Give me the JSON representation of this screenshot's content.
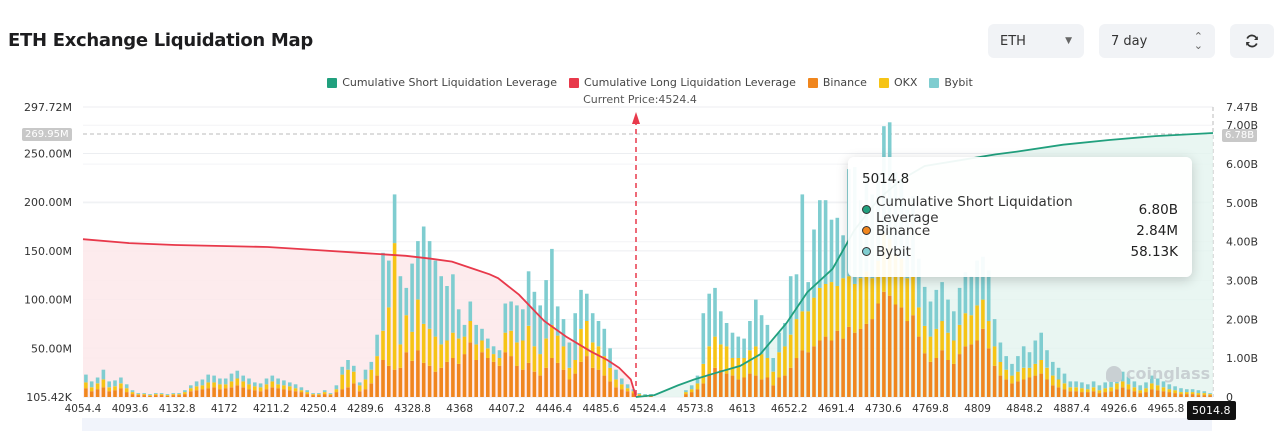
{
  "header": {
    "title": "ETH Exchange Liquidation Map",
    "coin_select": {
      "value": "ETH",
      "icon": "caret-down-icon"
    },
    "range_select": {
      "value": "7 day",
      "icon": "up-down-chevron-icon"
    },
    "refresh_button": {
      "icon": "refresh-icon"
    }
  },
  "legend": [
    {
      "label": "Cumulative Short Liquidation Leverage",
      "color": "#21a07e"
    },
    {
      "label": "Cumulative Long Liquidation Leverage",
      "color": "#e8394b"
    },
    {
      "label": "Binance",
      "color": "#f0861e"
    },
    {
      "label": "OKX",
      "color": "#f6c416"
    },
    {
      "label": "Bybit",
      "color": "#7fcdd0"
    }
  ],
  "current_price_label": "Current Price:4524.4",
  "crosshair": {
    "x_label": "5014.8",
    "left_y_label": "269.95M",
    "right_y_label": "6.78B"
  },
  "tooltip": {
    "title": "5014.8",
    "rows": [
      {
        "label": "Cumulative Short Liquidation Leverage",
        "value": "6.80B",
        "color": "#21a07e"
      },
      {
        "label": "Binance",
        "value": "2.84M",
        "color": "#f0861e"
      },
      {
        "label": "Bybit",
        "value": "58.13K",
        "color": "#7fcdd0"
      }
    ]
  },
  "watermark": "coinglass",
  "chart_data": {
    "type": "bar",
    "title": "ETH Exchange Liquidation Map",
    "xlabel": "Price",
    "ylabel": "Liquidation Leverage (per exchange)",
    "y2label": "Cumulative Liquidation Leverage",
    "x_ticks": [
      "4054.4",
      "4093.6",
      "4132.8",
      "4172",
      "4211.2",
      "4250.4",
      "4289.6",
      "4328.8",
      "4368",
      "4407.2",
      "4446.4",
      "4485.6",
      "4524.4",
      "4573.8",
      "4613",
      "4652.2",
      "4691.4",
      "4730.6",
      "4769.8",
      "4809",
      "4848.2",
      "4887.4",
      "4926.6",
      "4965.8",
      "5014.8"
    ],
    "x_range": [
      4054.4,
      5014.8
    ],
    "y_ticks_left": [
      "105.42K",
      "50.00M",
      "100.00M",
      "150.00M",
      "200.00M",
      "250.00M",
      "297.72M"
    ],
    "y_ticks_right": [
      "0",
      "1.00B",
      "2.00B",
      "3.00B",
      "4.00B",
      "5.00B",
      "6.00B",
      "7.00B",
      "7.47B"
    ],
    "ylim_left_millions": [
      0,
      297.72
    ],
    "ylim_right_billions": [
      0,
      7.47
    ],
    "current_price": 4524.4,
    "grid": true,
    "legend_position": "top-center",
    "stacked_series_units": "millions",
    "series": [
      {
        "name": "Binance",
        "color": "#f0861e",
        "values": [
          9,
          6,
          8,
          10,
          6,
          7,
          9,
          5,
          3,
          2,
          2,
          1,
          2,
          2,
          1,
          2,
          2,
          3,
          6,
          7,
          8,
          9,
          10,
          8,
          9,
          10,
          12,
          10,
          8,
          7,
          6,
          8,
          10,
          9,
          8,
          7,
          6,
          5,
          3,
          2,
          2,
          3,
          2,
          5,
          8,
          10,
          14,
          6,
          8,
          14,
          22,
          38,
          32,
          28,
          30,
          46,
          37,
          48,
          35,
          32,
          26,
          30,
          36,
          40,
          34,
          44,
          56,
          38,
          46,
          40,
          36,
          32,
          46,
          42,
          32,
          28,
          35,
          26,
          22,
          30,
          40,
          35,
          28,
          18,
          24,
          36,
          42,
          30,
          28,
          22,
          16,
          10,
          8,
          6,
          4,
          2,
          1,
          1,
          0,
          0,
          0,
          0,
          0,
          3,
          5,
          8,
          14,
          24,
          30,
          28,
          24,
          22,
          18,
          20,
          24,
          22,
          18,
          20,
          12,
          20,
          22,
          30,
          40,
          48,
          46,
          52,
          58,
          62,
          58,
          68,
          60,
          72,
          66,
          70,
          75,
          80,
          96,
          108,
          104,
          95,
          92,
          78,
          84,
          62,
          45,
          36,
          40,
          48,
          38,
          34,
          44,
          52,
          54,
          58,
          70,
          50,
          32,
          22,
          18,
          14,
          16,
          18,
          20,
          22,
          24,
          18,
          12,
          10,
          8,
          6,
          6,
          5,
          5,
          6,
          4,
          5,
          6,
          8,
          10,
          8,
          6,
          4,
          5,
          8,
          7,
          6,
          5,
          4,
          3,
          3,
          3,
          2,
          2,
          2
        ],
        "note": "approximate per-bucket values read from bar heights"
      },
      {
        "name": "OKX",
        "color": "#f6c416",
        "values": [
          6,
          4,
          6,
          8,
          4,
          4,
          5,
          4,
          2,
          1,
          1,
          1,
          1,
          1,
          1,
          1,
          1,
          2,
          3,
          4,
          4,
          6,
          5,
          5,
          4,
          6,
          7,
          6,
          5,
          4,
          4,
          5,
          6,
          4,
          4,
          4,
          3,
          2,
          2,
          1,
          1,
          2,
          1,
          3,
          15,
          18,
          12,
          6,
          10,
          14,
          20,
          30,
          60,
          130,
          24,
          38,
          30,
          52,
          40,
          38,
          36,
          24,
          22,
          26,
          26,
          18,
          22,
          16,
          12,
          10,
          8,
          8,
          20,
          26,
          24,
          30,
          38,
          26,
          22,
          30,
          34,
          28,
          24,
          12,
          14,
          34,
          36,
          26,
          24,
          20,
          14,
          8,
          5,
          3,
          2,
          1,
          1,
          1,
          0,
          0,
          0,
          0,
          0,
          2,
          3,
          6,
          20,
          28,
          32,
          26,
          28,
          18,
          22,
          20,
          24,
          30,
          26,
          20,
          14,
          26,
          30,
          34,
          40,
          40,
          42,
          50,
          54,
          54,
          60,
          46,
          62,
          52,
          50,
          52,
          54,
          42,
          44,
          60,
          58,
          52,
          50,
          44,
          40,
          30,
          28,
          26,
          30,
          30,
          28,
          24,
          30,
          34,
          30,
          36,
          30,
          28,
          20,
          14,
          10,
          8,
          10,
          12,
          10,
          12,
          14,
          12,
          10,
          8,
          6,
          4,
          4,
          4,
          3,
          4,
          3,
          4,
          4,
          6,
          6,
          5,
          4,
          3,
          4,
          6,
          5,
          4,
          3,
          3,
          2,
          2,
          2,
          2,
          2,
          1
        ],
        "note": "approximate per-bucket values read from bar heights"
      },
      {
        "name": "Bybit",
        "color": "#7fcdd0",
        "values": [
          8,
          6,
          6,
          10,
          6,
          6,
          6,
          4,
          2,
          1,
          1,
          1,
          1,
          1,
          1,
          1,
          1,
          2,
          3,
          5,
          6,
          8,
          7,
          6,
          6,
          8,
          8,
          6,
          6,
          4,
          4,
          6,
          6,
          6,
          5,
          4,
          4,
          3,
          2,
          1,
          1,
          2,
          1,
          4,
          8,
          10,
          6,
          3,
          10,
          8,
          22,
          80,
          48,
          50,
          70,
          28,
          70,
          60,
          100,
          90,
          78,
          70,
          56,
          60,
          30,
          12,
          20,
          20,
          12,
          10,
          8,
          8,
          30,
          30,
          38,
          32,
          56,
          56,
          50,
          60,
          78,
          30,
          28,
          26,
          48,
          40,
          28,
          30,
          26,
          28,
          20,
          10,
          6,
          4,
          2,
          1,
          1,
          1,
          0,
          0,
          0,
          0,
          0,
          2,
          4,
          8,
          52,
          54,
          50,
          34,
          24,
          26,
          22,
          20,
          30,
          48,
          40,
          34,
          14,
          20,
          24,
          60,
          46,
          120,
          30,
          70,
          90,
          86,
          64,
          70,
          44,
          110,
          120,
          80,
          96,
          86,
          90,
          110,
          120,
          84,
          80,
          70,
          82,
          50,
          40,
          36,
          40,
          40,
          34,
          30,
          38,
          42,
          40,
          46,
          44,
          52,
          28,
          20,
          14,
          12,
          16,
          22,
          16,
          24,
          28,
          18,
          14,
          12,
          10,
          6,
          6,
          6,
          5,
          6,
          5,
          6,
          6,
          8,
          10,
          8,
          6,
          5,
          6,
          8,
          7,
          6,
          5,
          4,
          4,
          3,
          3,
          3,
          2,
          1
        ],
        "note": "approximate per-bucket values read from bar heights"
      }
    ],
    "cumulative_long": {
      "name": "Cumulative Long Liquidation Leverage",
      "color": "#e8394b",
      "axis": "left",
      "x": [
        4054.4,
        4093.6,
        4132.8,
        4172,
        4211.2,
        4250.4,
        4289.6,
        4328.8,
        4350,
        4368,
        4385,
        4400,
        4407.2,
        4425,
        4446.4,
        4465,
        4485.6,
        4500,
        4510,
        4520,
        4524.4
      ],
      "y_millions": [
        162,
        158,
        156,
        155,
        154,
        151,
        148,
        145,
        142,
        139,
        132,
        126,
        122,
        105,
        78,
        62,
        47,
        38,
        30,
        18,
        0
      ]
    },
    "cumulative_short": {
      "name": "Cumulative Short Liquidation Leverage",
      "color": "#21a07e",
      "axis": "right",
      "x": [
        4524.4,
        4540,
        4560,
        4573.8,
        4590,
        4613,
        4630,
        4652.2,
        4670,
        4691.4,
        4710,
        4730.6,
        4750,
        4769.8,
        4800,
        4830,
        4848.2,
        4887.4,
        4926.6,
        4965.8,
        5014.8
      ],
      "y_billions": [
        0,
        0.05,
        0.3,
        0.45,
        0.6,
        0.8,
        1.1,
        1.9,
        2.7,
        3.3,
        4.3,
        5.1,
        5.6,
        5.95,
        6.1,
        6.25,
        6.32,
        6.5,
        6.62,
        6.72,
        6.8
      ]
    }
  }
}
